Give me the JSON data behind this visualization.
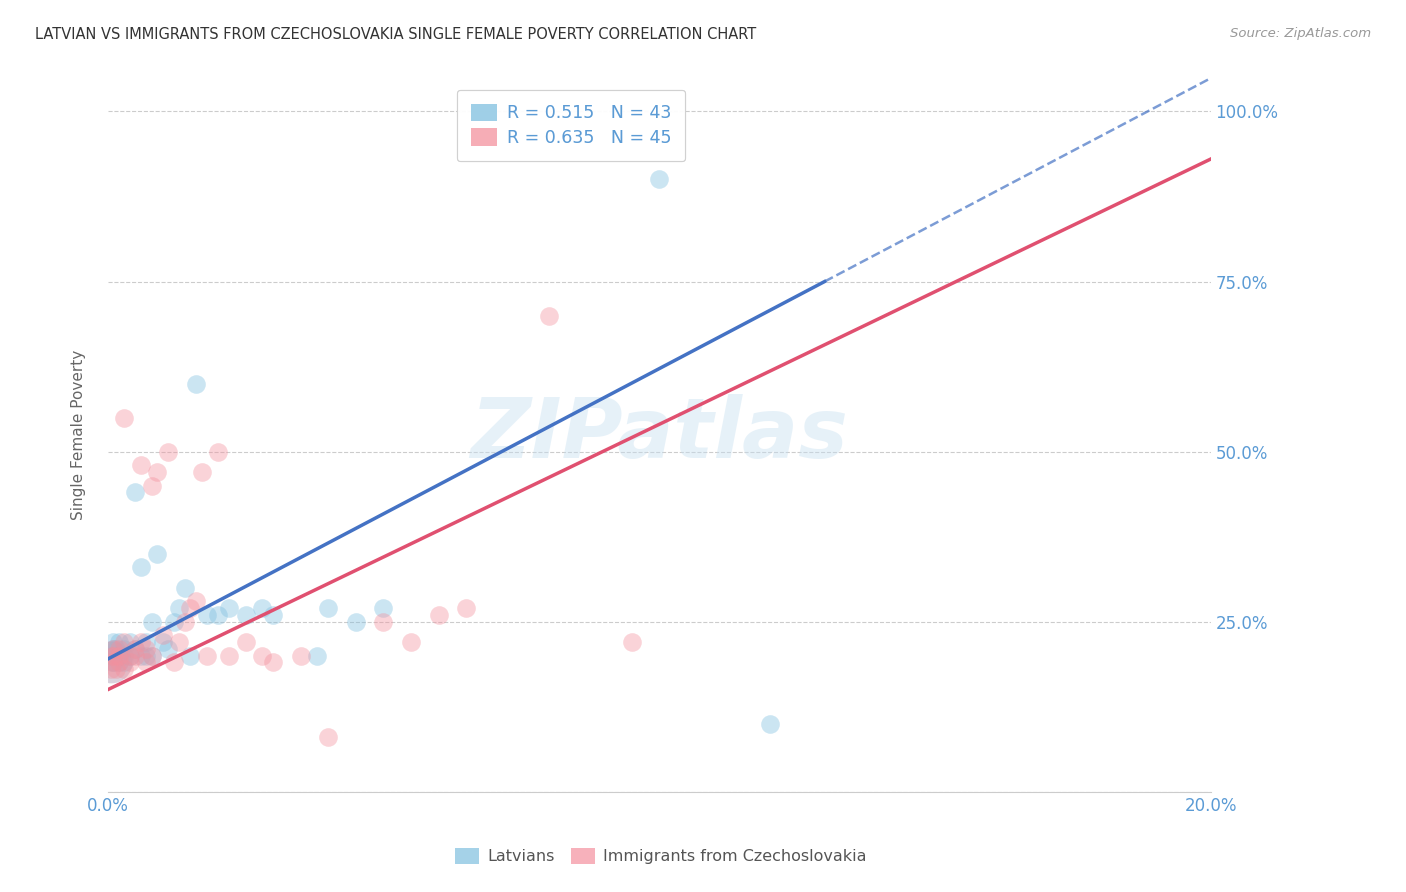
{
  "title": "LATVIAN VS IMMIGRANTS FROM CZECHOSLOVAKIA SINGLE FEMALE POVERTY CORRELATION CHART",
  "source": "Source: ZipAtlas.com",
  "ylabel": "Single Female Poverty",
  "xlim": [
    0.0,
    0.2
  ],
  "ylim": [
    0.0,
    1.05
  ],
  "latvians_color": "#7fbfdf",
  "immigrants_color": "#f4919e",
  "trend_blue": "#4472c4",
  "trend_pink": "#e05070",
  "R_latvians": 0.515,
  "N_latvians": 43,
  "R_immigrants": 0.635,
  "N_immigrants": 45,
  "watermark": "ZIPatlas",
  "background_color": "#ffffff",
  "grid_color": "#cccccc",
  "axis_label_color": "#5b9bd5",
  "title_color": "#333333",
  "source_color": "#999999",
  "latvians_x": [
    0.0005,
    0.0008,
    0.001,
    0.001,
    0.001,
    0.0012,
    0.0015,
    0.002,
    0.002,
    0.002,
    0.003,
    0.003,
    0.003,
    0.004,
    0.004,
    0.005,
    0.005,
    0.006,
    0.006,
    0.007,
    0.007,
    0.008,
    0.008,
    0.009,
    0.01,
    0.011,
    0.012,
    0.013,
    0.014,
    0.015,
    0.016,
    0.018,
    0.02,
    0.022,
    0.025,
    0.028,
    0.03,
    0.038,
    0.04,
    0.045,
    0.05,
    0.1,
    0.12
  ],
  "latvians_y": [
    0.2,
    0.19,
    0.21,
    0.22,
    0.2,
    0.19,
    0.21,
    0.2,
    0.22,
    0.19,
    0.21,
    0.2,
    0.19,
    0.22,
    0.2,
    0.21,
    0.44,
    0.2,
    0.33,
    0.2,
    0.22,
    0.25,
    0.2,
    0.35,
    0.22,
    0.21,
    0.25,
    0.27,
    0.3,
    0.2,
    0.6,
    0.26,
    0.26,
    0.27,
    0.26,
    0.27,
    0.26,
    0.2,
    0.27,
    0.25,
    0.27,
    0.9,
    0.1
  ],
  "immigrants_x": [
    0.0005,
    0.0008,
    0.001,
    0.001,
    0.0012,
    0.0015,
    0.002,
    0.002,
    0.002,
    0.003,
    0.003,
    0.003,
    0.004,
    0.004,
    0.005,
    0.005,
    0.006,
    0.006,
    0.007,
    0.007,
    0.008,
    0.008,
    0.009,
    0.01,
    0.011,
    0.012,
    0.013,
    0.014,
    0.015,
    0.016,
    0.017,
    0.018,
    0.02,
    0.022,
    0.025,
    0.028,
    0.03,
    0.035,
    0.04,
    0.05,
    0.055,
    0.06,
    0.065,
    0.08,
    0.095
  ],
  "immigrants_y": [
    0.18,
    0.2,
    0.19,
    0.21,
    0.2,
    0.18,
    0.21,
    0.19,
    0.2,
    0.22,
    0.55,
    0.18,
    0.2,
    0.19,
    0.21,
    0.2,
    0.48,
    0.22,
    0.19,
    0.21,
    0.45,
    0.2,
    0.47,
    0.23,
    0.5,
    0.19,
    0.22,
    0.25,
    0.27,
    0.28,
    0.47,
    0.2,
    0.5,
    0.2,
    0.22,
    0.2,
    0.19,
    0.2,
    0.08,
    0.25,
    0.22,
    0.26,
    0.27,
    0.7,
    0.22
  ],
  "blue_line_x": [
    0.0,
    0.13
  ],
  "blue_line_y_intercept": 0.18,
  "blue_line_slope": 5.5,
  "pink_line_x": [
    0.0,
    0.2
  ],
  "pink_line_y_intercept": 0.15,
  "pink_line_slope": 4.5
}
